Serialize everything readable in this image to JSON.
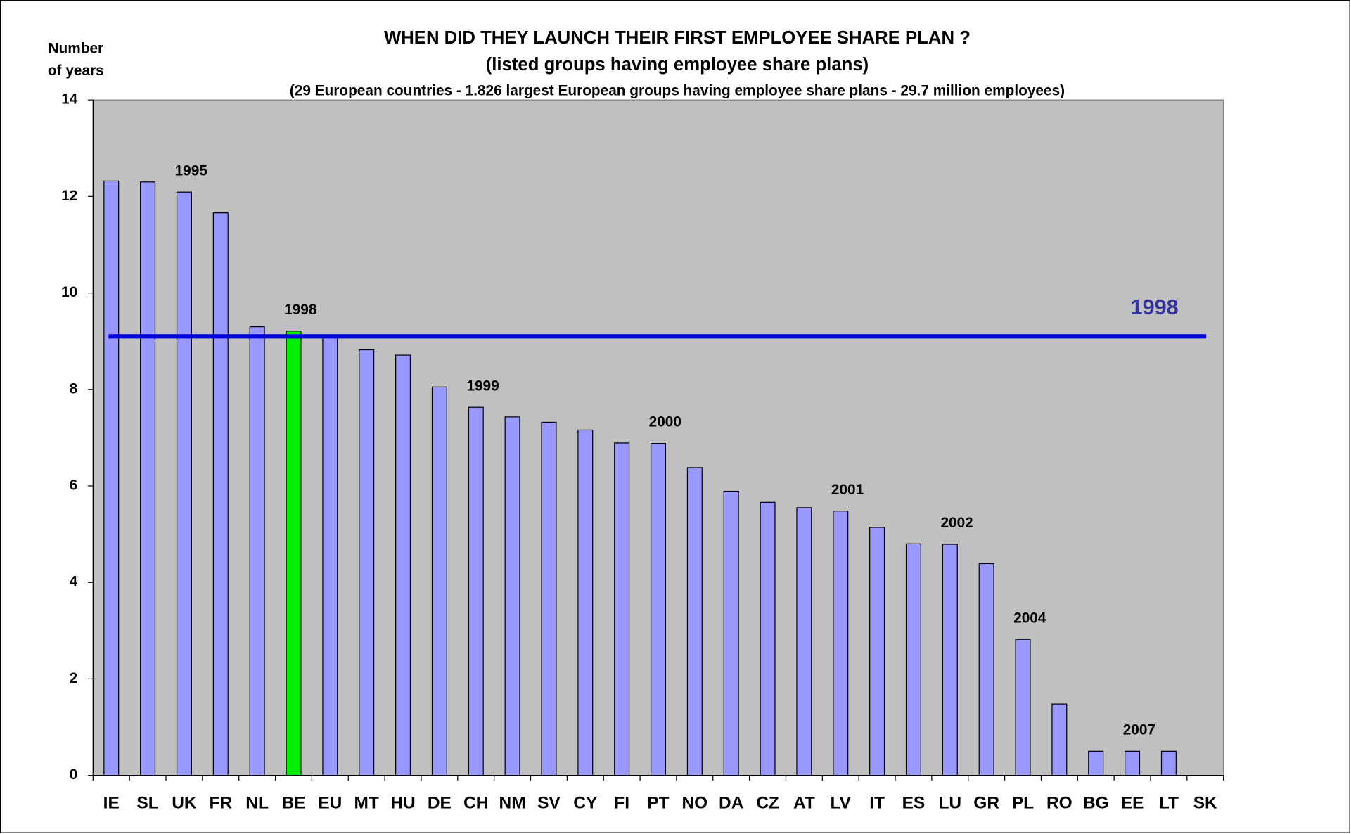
{
  "chart_data": {
    "type": "bar",
    "title": [
      "WHEN DID THEY LAUNCH THEIR FIRST EMPLOYEE SHARE PLAN ?",
      "(listed groups having employee share plans)"
    ],
    "subtitle": "(29 European countries - 1.826 largest European groups having employee share plans - 29.7 million employees)",
    "ylabel": [
      "Number",
      "of years"
    ],
    "categories": [
      "IE",
      "SL",
      "UK",
      "FR",
      "NL",
      "BE",
      "EU",
      "MT",
      "HU",
      "DE",
      "CH",
      "NM",
      "SV",
      "CY",
      "FI",
      "PT",
      "NO",
      "DA",
      "CZ",
      "AT",
      "LV",
      "IT",
      "ES",
      "LU",
      "GR",
      "PL",
      "RO",
      "BG",
      "EE",
      "LT",
      "SK"
    ],
    "values": [
      12.32,
      12.3,
      12.09,
      11.66,
      9.3,
      9.21,
      9.1,
      8.82,
      8.71,
      8.05,
      7.63,
      7.43,
      7.32,
      7.16,
      6.89,
      6.88,
      6.38,
      5.89,
      5.66,
      5.55,
      5.48,
      5.14,
      4.8,
      4.79,
      4.39,
      2.82,
      1.48,
      0.5,
      0.5,
      0.5,
      0
    ],
    "colors": [
      "#9999ff",
      "#9999ff",
      "#9999ff",
      "#9999ff",
      "#9999ff",
      "#00ee00",
      "#9999ff",
      "#9999ff",
      "#9999ff",
      "#9999ff",
      "#9999ff",
      "#9999ff",
      "#9999ff",
      "#9999ff",
      "#9999ff",
      "#9999ff",
      "#9999ff",
      "#9999ff",
      "#9999ff",
      "#9999ff",
      "#9999ff",
      "#9999ff",
      "#9999ff",
      "#9999ff",
      "#9999ff",
      "#9999ff",
      "#9999ff",
      "#9999ff",
      "#9999ff",
      "#9999ff",
      "#9999ff"
    ],
    "ylim": [
      0,
      14
    ],
    "yticks": [
      0,
      2,
      4,
      6,
      8,
      10,
      12,
      14
    ],
    "reference_line": {
      "value": 9.1,
      "label": "1998",
      "color": "#0000dd",
      "label_color": "#333399"
    },
    "annotations": [
      {
        "text": "1995",
        "category": "UK"
      },
      {
        "text": "1998",
        "category": "BE"
      },
      {
        "text": "1999",
        "category": "CH"
      },
      {
        "text": "2000",
        "category": "PT"
      },
      {
        "text": "2001",
        "category": "LV"
      },
      {
        "text": "2002",
        "category": "LU"
      },
      {
        "text": "2004",
        "category": "PL"
      },
      {
        "text": "2007",
        "category": "EE"
      }
    ]
  }
}
